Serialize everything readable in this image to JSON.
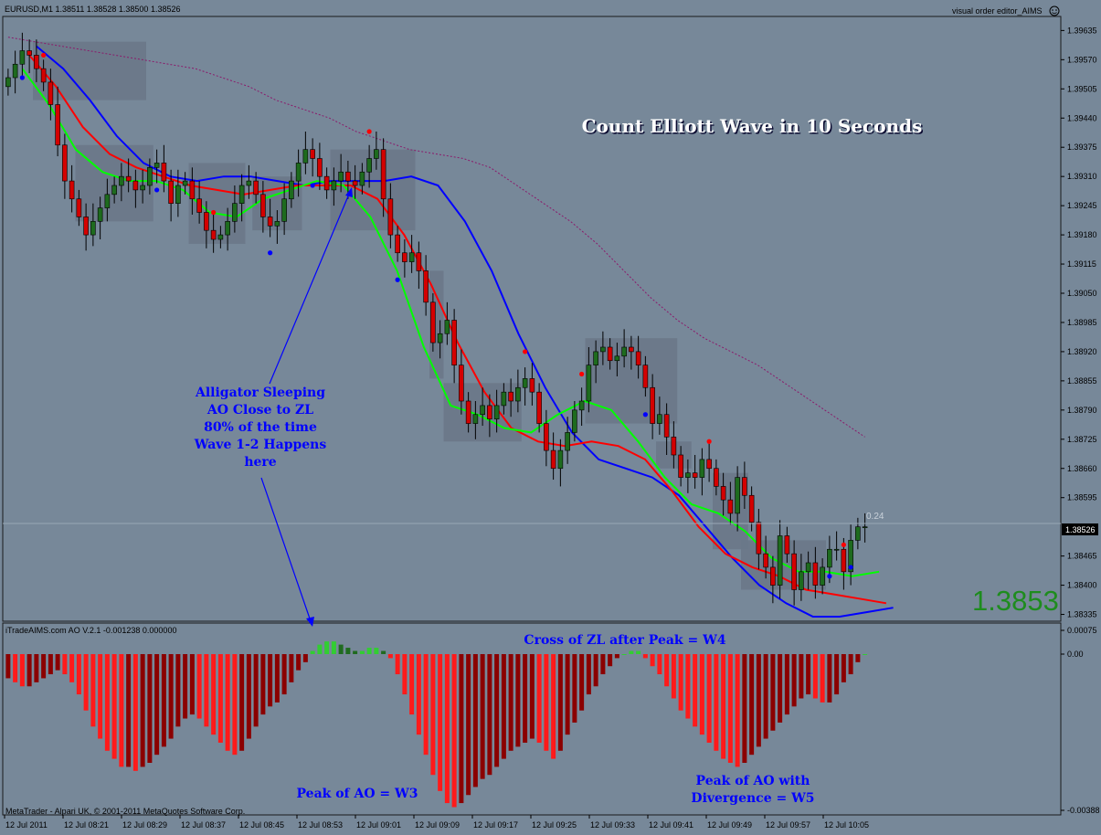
{
  "header": {
    "symbol_info": "EURUSD,M1  1.38511 1.38528 1.38500 1.38526",
    "ea_label": "visual order editor_AIMS"
  },
  "annotations": {
    "title": "Count Elliott Wave in 10 Seconds",
    "sleeping": [
      "Alligator Sleeping",
      "AO Close to ZL",
      "80% of the time",
      "Wave 1-2 Happens",
      "here"
    ],
    "w4": "Cross of ZL after Peak = W4",
    "w3": "Peak of AO = W3",
    "w5": [
      "Peak of AO with",
      "Divergence = W5"
    ]
  },
  "price_display": "1.3853",
  "level_label": "0.24",
  "current_price_tag": "1.38526",
  "indicator_label": "iTradeAIMS.com AO V.2.1 -0.001238 0.000000",
  "footer": "MetaTrader - Alpari UK, © 2001-2011 MetaQuotes Software Corp.",
  "colors": {
    "background": "#778899",
    "bull_candle": "#1e6b1e",
    "bear_candle": "#d40000",
    "alligator_jaw": "#0000ff",
    "alligator_teeth": "#ff0000",
    "alligator_lips": "#00ff00",
    "ao_up": "#32cd32",
    "ao_down_bright": "#ff1a1a",
    "ao_down_dark": "#8b0000",
    "annotation_text": "#0000ff"
  },
  "chart_data": [
    {
      "type": "candlestick",
      "name": "EURUSD,M1",
      "x_ticks": [
        "12 Jul 2011",
        "12 Jul 08:21",
        "12 Jul 08:29",
        "12 Jul 08:37",
        "12 Jul 08:45",
        "12 Jul 08:53",
        "12 Jul 09:01",
        "12 Jul 09:09",
        "12 Jul 09:17",
        "12 Jul 09:25",
        "12 Jul 09:33",
        "12 Jul 09:41",
        "12 Jul 09:49",
        "12 Jul 09:57",
        "12 Jul 10:05"
      ],
      "y_ticks": [
        "1.39635",
        "1.39570",
        "1.39505",
        "1.39440",
        "1.39375",
        "1.39310",
        "1.39245",
        "1.39180",
        "1.39115",
        "1.39050",
        "1.38985",
        "1.38920",
        "1.38855",
        "1.38790",
        "1.38725",
        "1.38660",
        "1.38595",
        "1.38526",
        "1.38465",
        "1.38400",
        "1.38335"
      ],
      "ylim": [
        1.3833,
        1.3965
      ],
      "closes": [
        1.3953,
        1.3956,
        1.3959,
        1.3958,
        1.3955,
        1.3952,
        1.3947,
        1.3938,
        1.393,
        1.3926,
        1.3922,
        1.3918,
        1.3921,
        1.3924,
        1.3927,
        1.3929,
        1.3931,
        1.393,
        1.3928,
        1.3929,
        1.3933,
        1.3934,
        1.393,
        1.3925,
        1.3929,
        1.393,
        1.3926,
        1.3923,
        1.3919,
        1.3917,
        1.3918,
        1.3921,
        1.3925,
        1.3929,
        1.393,
        1.3927,
        1.3922,
        1.392,
        1.3921,
        1.3926,
        1.393,
        1.3934,
        1.3937,
        1.3935,
        1.3931,
        1.3928,
        1.393,
        1.3932,
        1.393,
        1.3929,
        1.3932,
        1.3935,
        1.3937,
        1.3926,
        1.3918,
        1.3914,
        1.3912,
        1.3914,
        1.391,
        1.3903,
        1.3894,
        1.3896,
        1.3899,
        1.3889,
        1.3881,
        1.3876,
        1.3878,
        1.388,
        1.3877,
        1.388,
        1.3883,
        1.3881,
        1.3884,
        1.3886,
        1.3883,
        1.3876,
        1.387,
        1.3866,
        1.387,
        1.3874,
        1.3879,
        1.3881,
        1.3889,
        1.3892,
        1.3893,
        1.389,
        1.3891,
        1.3893,
        1.3892,
        1.3889,
        1.3884,
        1.3876,
        1.3878,
        1.3873,
        1.3869,
        1.3864,
        1.3865,
        1.3864,
        1.3868,
        1.3866,
        1.3862,
        1.3859,
        1.3856,
        1.3864,
        1.386,
        1.3854,
        1.3847,
        1.3844,
        1.384,
        1.3851,
        1.3847,
        1.3839,
        1.3843,
        1.3845,
        1.384,
        1.3844,
        1.3848,
        1.3848,
        1.3843,
        1.385,
        1.3853,
        1.3853
      ],
      "markers": [
        {
          "type": "fractal_up",
          "bar": 5
        },
        {
          "type": "fractal_down",
          "bar": 2
        },
        {
          "type": "fractal_down",
          "bar": 21
        },
        {
          "type": "fractal_up",
          "bar": 29
        },
        {
          "type": "fractal_down",
          "bar": 37
        },
        {
          "type": "fractal_down",
          "bar": 43
        },
        {
          "type": "fractal_up",
          "bar": 51
        },
        {
          "type": "fractal_down",
          "bar": 55
        },
        {
          "type": "fractal_up",
          "bar": 73
        },
        {
          "type": "fractal_up",
          "bar": 81
        },
        {
          "type": "fractal_down",
          "bar": 90
        },
        {
          "type": "fractal_up",
          "bar": 99
        },
        {
          "type": "fractal_up",
          "bar": 118
        },
        {
          "type": "fractal_down",
          "bar": 116
        },
        {
          "type": "fractal_down",
          "bar": 119
        }
      ],
      "series": [
        {
          "values": [
            1.396,
            1.3955,
            1.3948,
            1.394,
            1.3934,
            1.3931,
            1.393,
            1.3931,
            1.3931,
            1.393,
            1.3929,
            1.393,
            1.393,
            1.393,
            1.3931,
            1.3929,
            1.3921,
            1.391,
            1.3896,
            1.3884,
            1.3874,
            1.3868,
            1.3866,
            1.3864,
            1.386,
            1.3853,
            1.3846,
            1.384,
            1.3836,
            1.3833,
            1.3833,
            1.3834,
            1.3835
          ]
        },
        {
          "values": [
            1.3958,
            1.3951,
            1.3942,
            1.3936,
            1.3933,
            1.3931,
            1.3929,
            1.3928,
            1.3927,
            1.3928,
            1.3929,
            1.3929,
            1.3929,
            1.3926,
            1.3918,
            1.3907,
            1.3894,
            1.3883,
            1.3875,
            1.3872,
            1.3871,
            1.3872,
            1.3871,
            1.3868,
            1.3861,
            1.3853,
            1.3847,
            1.3844,
            1.3842,
            1.3839,
            1.3838,
            1.3837,
            1.3836
          ]
        },
        {
          "values": [
            1.3955,
            1.3947,
            1.3937,
            1.3932,
            1.393,
            1.393,
            1.3928,
            1.3923,
            1.3922,
            1.3926,
            1.3928,
            1.393,
            1.3929,
            1.3922,
            1.391,
            1.3893,
            1.388,
            1.3878,
            1.3875,
            1.3874,
            1.3878,
            1.3881,
            1.3879,
            1.3872,
            1.3864,
            1.3858,
            1.3856,
            1.3852,
            1.3846,
            1.3843,
            1.3843,
            1.3842,
            1.3843
          ]
        },
        {
          "values": [
            1.3962,
            1.3961,
            1.396,
            1.3959,
            1.3958,
            1.3957,
            1.3956,
            1.3955,
            1.3953,
            1.3951,
            1.3948,
            1.3946,
            1.3944,
            1.3941,
            1.3939,
            1.3937,
            1.3936,
            1.3935,
            1.3933,
            1.3929,
            1.3925,
            1.3921,
            1.3916,
            1.391,
            1.3904,
            1.3899,
            1.3895,
            1.3892,
            1.3889,
            1.3885,
            1.3881,
            1.3877,
            1.3873
          ]
        }
      ]
    },
    {
      "type": "bar",
      "name": "iTradeAIMS.com AO V.2.1",
      "y_ticks": [
        "0.00075",
        "0.00",
        "-0.00388"
      ],
      "ylim": [
        -0.00388,
        0.00075
      ],
      "values": [
        -0.0006,
        -0.0007,
        -0.0008,
        -0.0008,
        -0.0007,
        -0.0006,
        -0.0005,
        -0.0004,
        -0.0005,
        -0.0007,
        -0.001,
        -0.0014,
        -0.0018,
        -0.0021,
        -0.0024,
        -0.0026,
        -0.0028,
        -0.0028,
        -0.0029,
        -0.0028,
        -0.0027,
        -0.0025,
        -0.0023,
        -0.0021,
        -0.0018,
        -0.0016,
        -0.0015,
        -0.0016,
        -0.0018,
        -0.002,
        -0.0022,
        -0.0024,
        -0.0025,
        -0.0024,
        -0.0021,
        -0.0018,
        -0.0015,
        -0.0013,
        -0.0012,
        -0.001,
        -0.0007,
        -0.0004,
        -0.0002,
        0.0001,
        0.0003,
        0.0004,
        0.0004,
        0.0003,
        0.0002,
        0.0001,
        0.0001,
        0.0002,
        0.0002,
        0.0001,
        -0.0001,
        -0.0005,
        -0.001,
        -0.0015,
        -0.002,
        -0.0025,
        -0.003,
        -0.0034,
        -0.0037,
        -0.0038,
        -0.0037,
        -0.0035,
        -0.0033,
        -0.0031,
        -0.003,
        -0.0028,
        -0.0026,
        -0.0024,
        -0.0023,
        -0.0022,
        -0.0021,
        -0.0022,
        -0.0024,
        -0.0026,
        -0.0024,
        -0.002,
        -0.0017,
        -0.0014,
        -0.001,
        -0.0008,
        -0.0005,
        -0.0003,
        -0.0001,
        0.0,
        0.0001,
        0.0001,
        -0.0001,
        -0.0003,
        -0.0005,
        -0.0008,
        -0.0011,
        -0.0014,
        -0.0016,
        -0.0018,
        -0.002,
        -0.0022,
        -0.0024,
        -0.0026,
        -0.0027,
        -0.0028,
        -0.0027,
        -0.0025,
        -0.0023,
        -0.0021,
        -0.0019,
        -0.0017,
        -0.0015,
        -0.0013,
        -0.0011,
        -0.001,
        -0.0011,
        -0.0012,
        -0.0012,
        -0.001,
        -0.0007,
        -0.0005,
        -0.0002,
        0.0
      ]
    }
  ]
}
